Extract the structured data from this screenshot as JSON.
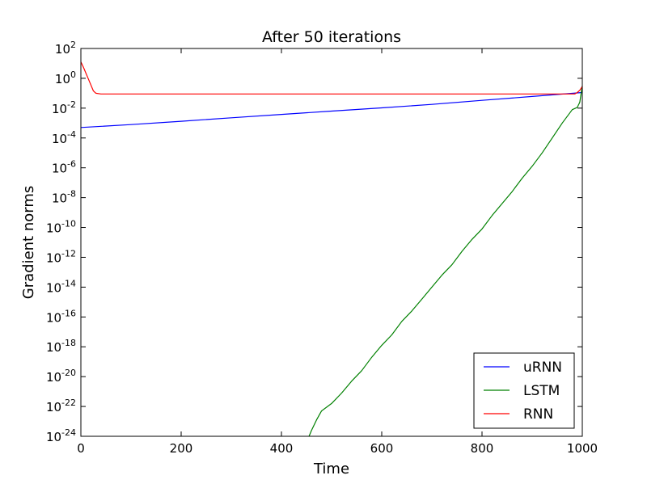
{
  "chart_data": {
    "type": "line",
    "title": "After 50 iterations",
    "xlabel": "Time",
    "ylabel": "Gradient norms",
    "xlim": [
      0,
      1000
    ],
    "ylim_exponent": [
      -24,
      2
    ],
    "yscale": "log",
    "grid": false,
    "legend_position": "bottom-right",
    "x_ticks": [
      0,
      200,
      400,
      600,
      800,
      1000
    ],
    "y_tick_exponents": [
      2,
      0,
      -2,
      -4,
      -6,
      -8,
      -10,
      -12,
      -14,
      -16,
      -18,
      -20,
      -22,
      -24
    ],
    "series": [
      {
        "name": "uRNN",
        "color": "#0000ff",
        "x": [
          0,
          100,
          200,
          300,
          400,
          500,
          600,
          700,
          800,
          900,
          1000
        ],
        "log10_y": [
          -3.3,
          -3.1,
          -2.88,
          -2.65,
          -2.42,
          -2.2,
          -1.98,
          -1.75,
          -1.48,
          -1.22,
          -0.95
        ]
      },
      {
        "name": "LSTM",
        "color": "#008000",
        "x": [
          455,
          460,
          470,
          480,
          500,
          520,
          540,
          560,
          580,
          600,
          620,
          640,
          660,
          680,
          700,
          720,
          740,
          760,
          780,
          800,
          820,
          840,
          860,
          880,
          900,
          920,
          940,
          960,
          980,
          990,
          995,
          1000
        ],
        "log10_y": [
          -24,
          -23.6,
          -22.9,
          -22.3,
          -21.8,
          -21.1,
          -20.3,
          -19.6,
          -18.7,
          -17.9,
          -17.2,
          -16.3,
          -15.6,
          -14.8,
          -14.0,
          -13.2,
          -12.5,
          -11.6,
          -10.8,
          -10.1,
          -9.2,
          -8.4,
          -7.6,
          -6.7,
          -5.9,
          -5.0,
          -4.0,
          -3.0,
          -2.1,
          -1.95,
          -1.6,
          -0.5
        ]
      },
      {
        "name": "RNN",
        "color": "#ff0000",
        "x": [
          0,
          5,
          10,
          15,
          20,
          25,
          30,
          40,
          60,
          100,
          200,
          300,
          400,
          500,
          600,
          700,
          800,
          900,
          985,
          990,
          995,
          1000
        ],
        "log10_y": [
          1.1,
          0.75,
          0.35,
          -0.05,
          -0.45,
          -0.85,
          -1.0,
          -1.05,
          -1.05,
          -1.05,
          -1.05,
          -1.05,
          -1.05,
          -1.05,
          -1.05,
          -1.05,
          -1.05,
          -1.05,
          -1.05,
          -0.95,
          -0.8,
          -0.55
        ]
      }
    ]
  }
}
